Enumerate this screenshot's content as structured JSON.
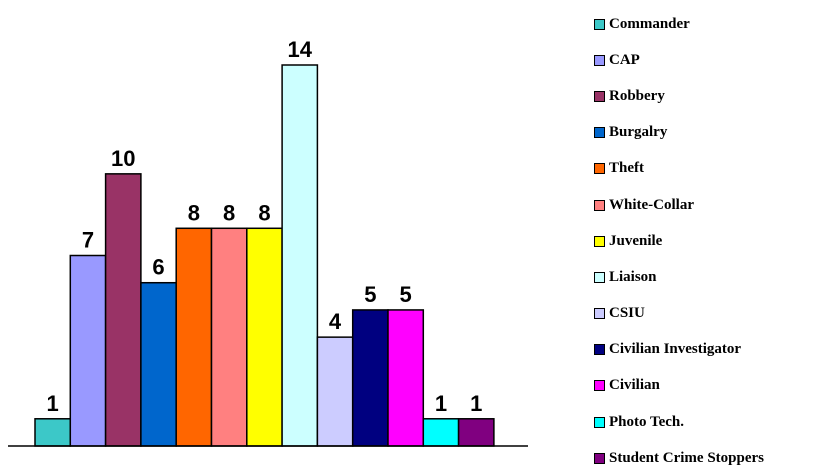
{
  "chart_data": {
    "type": "bar",
    "title": "",
    "xlabel": "",
    "ylabel": "",
    "ylim": [
      0,
      14
    ],
    "grid": false,
    "legend_position": "right",
    "categories": [
      "Commander",
      "CAP",
      "Robbery",
      "Burgalry",
      "Theft",
      "White-Collar",
      "Juvenile",
      "Liaison",
      "CSIU",
      "Civilian Investigator",
      "Civilian",
      "Photo Tech.",
      "Student Crime Stoppers"
    ],
    "values": [
      1,
      7,
      10,
      6,
      8,
      8,
      8,
      14,
      4,
      5,
      5,
      1,
      1
    ],
    "colors": [
      "#3cc8c8",
      "#9999ff",
      "#993366",
      "#0066cc",
      "#ff6600",
      "#ff8080",
      "#ffff00",
      "#ccffff",
      "#ccccff",
      "#000080",
      "#ff00ff",
      "#00ffff",
      "#800080"
    ]
  }
}
